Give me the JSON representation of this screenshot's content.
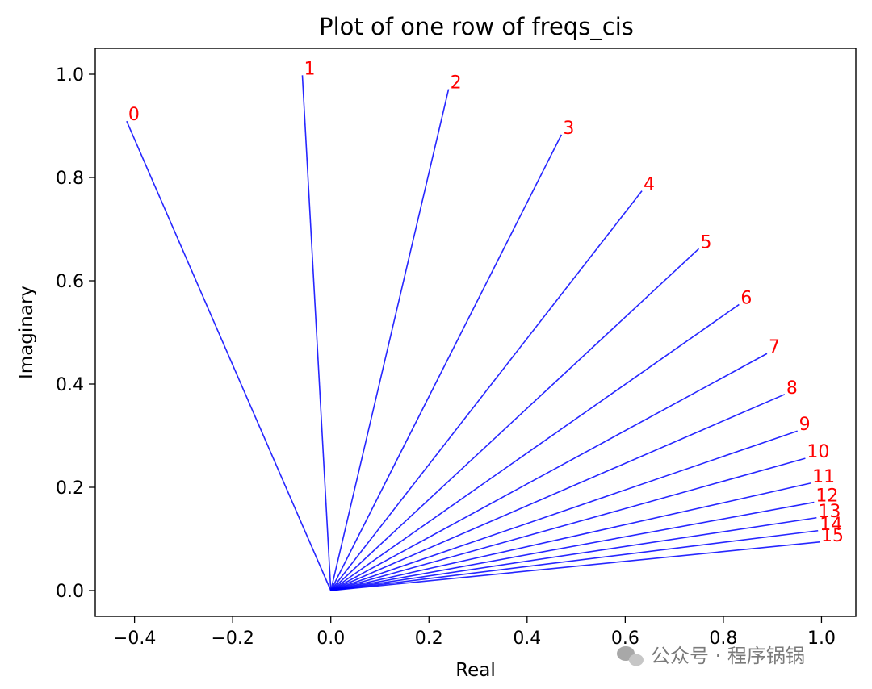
{
  "chart_data": {
    "type": "line",
    "title": "Plot of one row of freqs_cis",
    "xlabel": "Real",
    "ylabel": "Imaginary",
    "xlim": [
      -0.48,
      1.07
    ],
    "ylim": [
      -0.05,
      1.05
    ],
    "grid": false,
    "line_color": "#0000ff",
    "label_color": "#ff0000",
    "xticks": [
      -0.4,
      -0.2,
      0.0,
      0.2,
      0.4,
      0.6,
      0.8,
      1.0
    ],
    "xtick_labels": [
      "−0.4",
      "−0.2",
      "0.0",
      "0.2",
      "0.4",
      "0.6",
      "0.8",
      "1.0"
    ],
    "yticks": [
      0.0,
      0.2,
      0.4,
      0.6,
      0.8,
      1.0
    ],
    "ytick_labels": [
      "0.0",
      "0.2",
      "0.4",
      "0.6",
      "0.8",
      "1.0"
    ],
    "origin": [
      0,
      0
    ],
    "points": [
      {
        "label": "0",
        "x": -0.416,
        "y": 0.909
      },
      {
        "label": "1",
        "x": -0.058,
        "y": 0.998
      },
      {
        "label": "2",
        "x": 0.24,
        "y": 0.971
      },
      {
        "label": "3",
        "x": 0.47,
        "y": 0.883
      },
      {
        "label": "4",
        "x": 0.634,
        "y": 0.774
      },
      {
        "label": "5",
        "x": 0.75,
        "y": 0.662
      },
      {
        "label": "6",
        "x": 0.832,
        "y": 0.554
      },
      {
        "label": "7",
        "x": 0.889,
        "y": 0.459
      },
      {
        "label": "8",
        "x": 0.925,
        "y": 0.38
      },
      {
        "label": "9",
        "x": 0.951,
        "y": 0.309
      },
      {
        "label": "10",
        "x": 0.967,
        "y": 0.256
      },
      {
        "label": "11",
        "x": 0.978,
        "y": 0.208
      },
      {
        "label": "12",
        "x": 0.985,
        "y": 0.171
      },
      {
        "label": "13",
        "x": 0.99,
        "y": 0.141
      },
      {
        "label": "14",
        "x": 0.993,
        "y": 0.116
      },
      {
        "label": "15",
        "x": 0.996,
        "y": 0.094
      }
    ]
  },
  "watermark": {
    "icon": "wechat-icon",
    "text": "公众号 · 程序锅锅"
  }
}
